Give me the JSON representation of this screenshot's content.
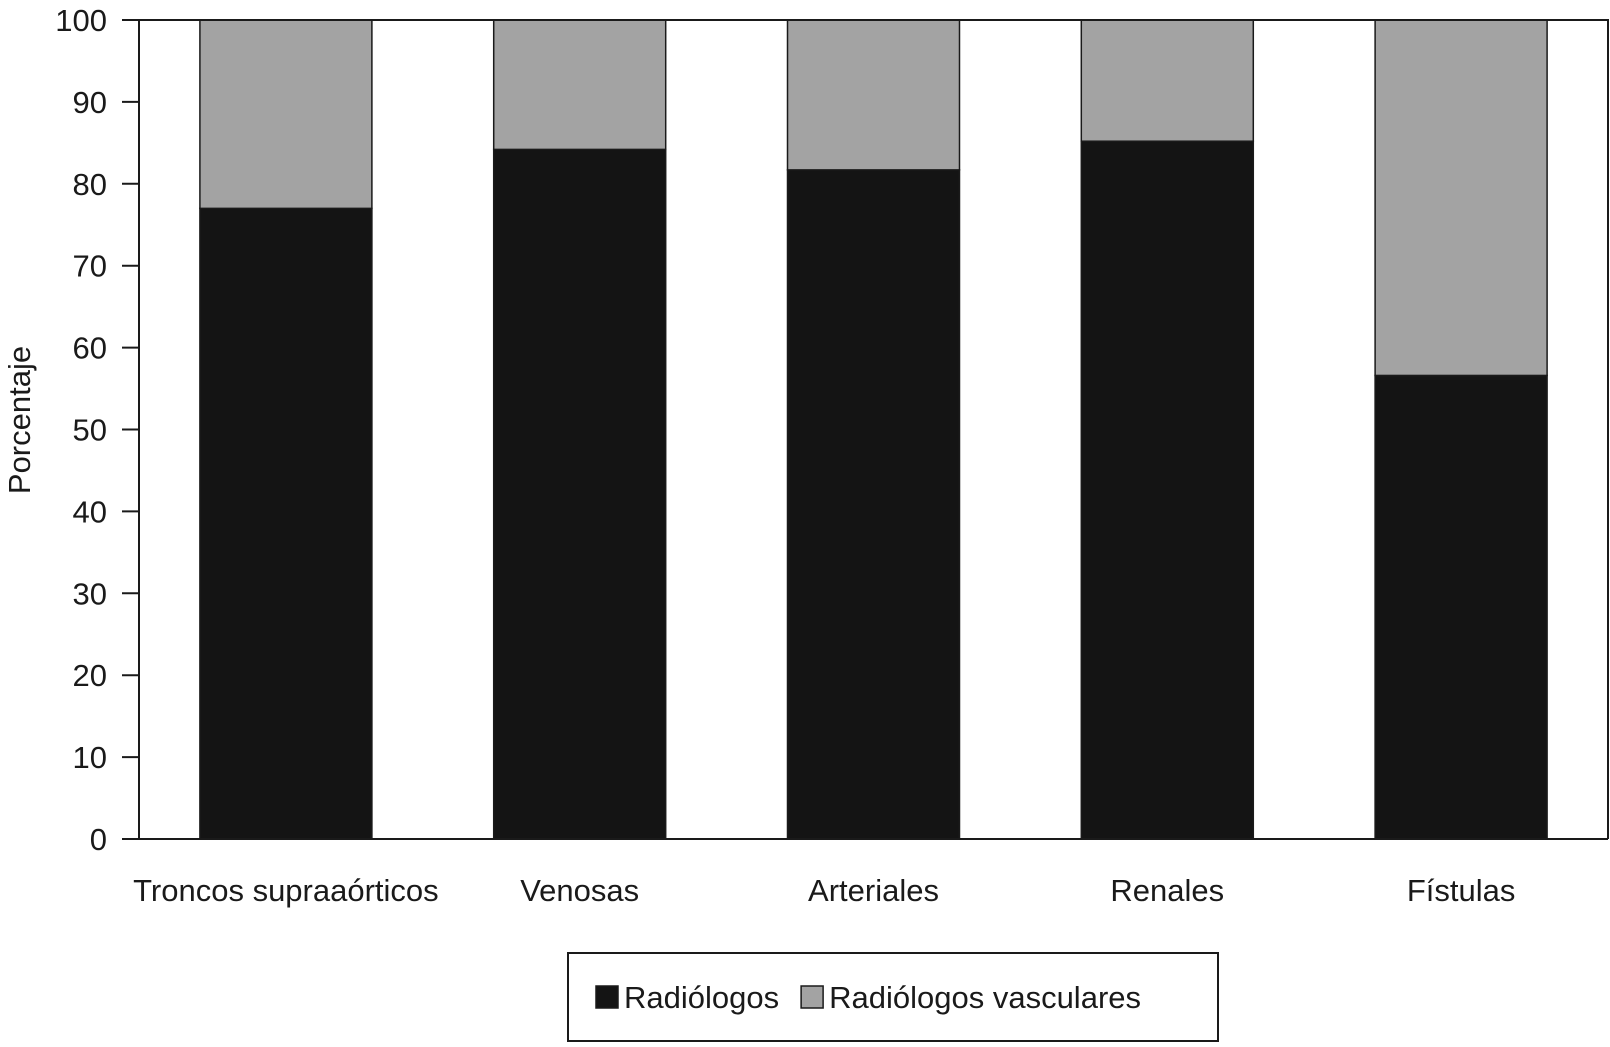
{
  "chart_data": {
    "type": "bar",
    "stacked": true,
    "categories": [
      "Troncos supraaórticos",
      "Venosas",
      "Arteriales",
      "Renales",
      "Fístulas"
    ],
    "series": [
      {
        "name": "Radiólogos",
        "values": [
          77,
          84.2,
          81.7,
          85.2,
          56.6
        ],
        "color": "#141414"
      },
      {
        "name": "Radiólogos vasculares",
        "values": [
          23,
          15.8,
          18.3,
          14.8,
          43.4
        ],
        "color": "#a3a3a3"
      }
    ],
    "title": "",
    "xlabel": "",
    "ylabel": "Porcentaje",
    "ylim": [
      0,
      100
    ],
    "yticks": [
      "0",
      "10",
      "20",
      "30",
      "40",
      "50",
      "60",
      "70",
      "80",
      "90",
      "100"
    ],
    "grid": false,
    "legend_position": "bottom-center"
  }
}
